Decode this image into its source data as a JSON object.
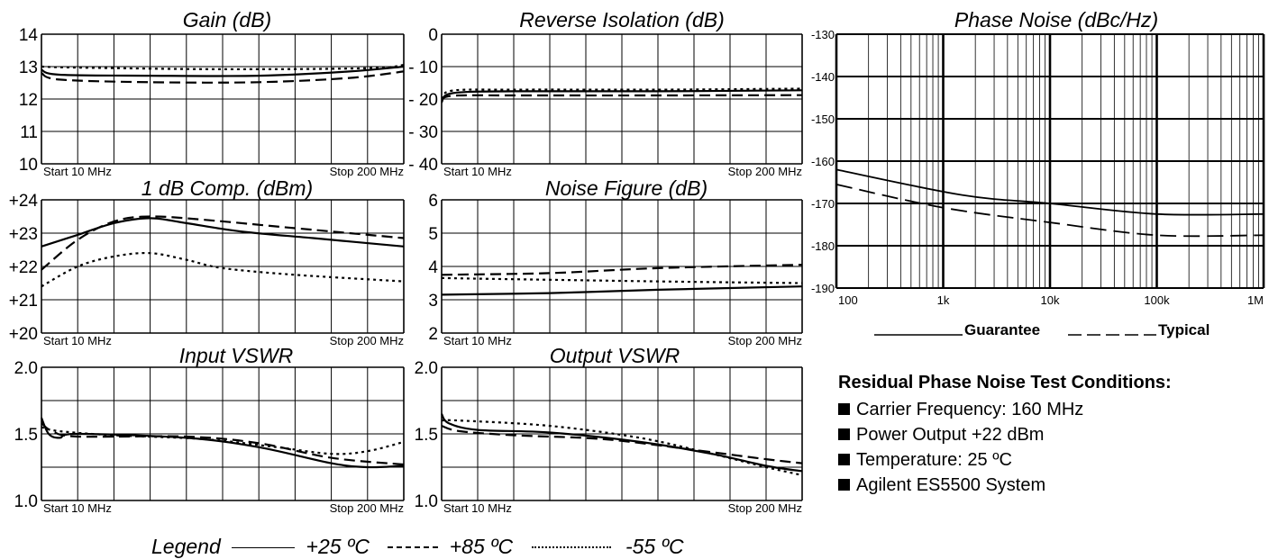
{
  "chart_data": [
    {
      "id": "gain",
      "type": "line",
      "title": "Gain (dB)",
      "ylim": [
        10,
        14
      ],
      "yticks": [
        "14",
        "13",
        "12",
        "11",
        "10"
      ],
      "xlim": [
        0,
        1
      ],
      "xlabel_start": "Start 10 MHz",
      "xlabel_stop": "Stop 200 MHz",
      "grid": true,
      "series": [
        {
          "name": "+25 ºC",
          "style": "solid",
          "points": [
            [
              0,
              12.9
            ],
            [
              0.05,
              12.75
            ],
            [
              0.3,
              12.72
            ],
            [
              0.6,
              12.72
            ],
            [
              0.85,
              12.85
            ],
            [
              1,
              13.0
            ]
          ]
        },
        {
          "name": "+85 ºC",
          "style": "dashed",
          "points": [
            [
              0,
              12.8
            ],
            [
              0.05,
              12.6
            ],
            [
              0.3,
              12.52
            ],
            [
              0.6,
              12.52
            ],
            [
              0.85,
              12.65
            ],
            [
              1,
              12.85
            ]
          ]
        },
        {
          "name": "-55 ºC",
          "style": "dotted",
          "points": [
            [
              0,
              13.0
            ],
            [
              0.1,
              12.97
            ],
            [
              0.5,
              12.92
            ],
            [
              0.9,
              12.95
            ],
            [
              1,
              13.05
            ]
          ]
        }
      ]
    },
    {
      "id": "reverse_isolation",
      "type": "line",
      "title": "Reverse Isolation (dB)",
      "ylim": [
        -40,
        0
      ],
      "yticks": [
        "0",
        "- 10",
        "- 20",
        "- 30",
        "- 40"
      ],
      "xlim": [
        0,
        1
      ],
      "xlabel_start": "Start 10 MHz",
      "xlabel_stop": "Stop 200 MHz",
      "grid": true,
      "series": [
        {
          "name": "+25 ºC",
          "style": "solid",
          "points": [
            [
              0,
              -21
            ],
            [
              0.03,
              -18.2
            ],
            [
              0.2,
              -17.6
            ],
            [
              0.6,
              -17.6
            ],
            [
              1,
              -17.3
            ]
          ]
        },
        {
          "name": "+85 ºC",
          "style": "dashed",
          "points": [
            [
              0,
              -20.5
            ],
            [
              0.03,
              -19
            ],
            [
              0.2,
              -18.9
            ],
            [
              0.6,
              -18.9
            ],
            [
              1,
              -18.8
            ]
          ]
        },
        {
          "name": "-55 ºC",
          "style": "dotted",
          "points": [
            [
              0,
              -20
            ],
            [
              0.03,
              -17.4
            ],
            [
              0.2,
              -17.1
            ],
            [
              0.6,
              -17.1
            ],
            [
              1,
              -16.8
            ]
          ]
        }
      ]
    },
    {
      "id": "compression",
      "type": "line",
      "title": "1 dB Comp. (dBm)",
      "ylim": [
        20,
        24
      ],
      "yticks": [
        "+24",
        "+23",
        "+22",
        "+21",
        "+20"
      ],
      "xlim": [
        0,
        1
      ],
      "xlabel_start": "Start 10 MHz",
      "xlabel_stop": "Stop 200 MHz",
      "grid": true,
      "series": [
        {
          "name": "+25 ºC",
          "style": "solid",
          "points": [
            [
              0,
              22.6
            ],
            [
              0.1,
              22.95
            ],
            [
              0.2,
              23.3
            ],
            [
              0.3,
              23.45
            ],
            [
              0.4,
              23.3
            ],
            [
              0.55,
              23.05
            ],
            [
              0.75,
              22.85
            ],
            [
              1,
              22.6
            ]
          ]
        },
        {
          "name": "+85 ºC",
          "style": "dashed",
          "points": [
            [
              0,
              21.9
            ],
            [
              0.1,
              22.8
            ],
            [
              0.2,
              23.35
            ],
            [
              0.3,
              23.5
            ],
            [
              0.45,
              23.4
            ],
            [
              0.7,
              23.15
            ],
            [
              1,
              22.85
            ]
          ]
        },
        {
          "name": "-55 ºC",
          "style": "dotted",
          "points": [
            [
              0,
              21.4
            ],
            [
              0.1,
              22.0
            ],
            [
              0.2,
              22.3
            ],
            [
              0.3,
              22.4
            ],
            [
              0.4,
              22.2
            ],
            [
              0.5,
              21.95
            ],
            [
              0.7,
              21.75
            ],
            [
              1,
              21.55
            ]
          ]
        }
      ]
    },
    {
      "id": "noise_figure",
      "type": "line",
      "title": "Noise Figure (dB)",
      "ylim": [
        2,
        6
      ],
      "yticks": [
        "6",
        "5",
        "4",
        "3",
        "2"
      ],
      "xlim": [
        0,
        1
      ],
      "xlabel_start": "Start 10 MHz",
      "xlabel_stop": "Stop 200 MHz",
      "grid": true,
      "series": [
        {
          "name": "+25 ºC",
          "style": "solid",
          "points": [
            [
              0,
              3.15
            ],
            [
              0.3,
              3.2
            ],
            [
              0.6,
              3.3
            ],
            [
              1,
              3.4
            ]
          ]
        },
        {
          "name": "+85 ºC",
          "style": "dashed",
          "points": [
            [
              0,
              3.75
            ],
            [
              0.3,
              3.8
            ],
            [
              0.6,
              3.95
            ],
            [
              1,
              4.05
            ]
          ]
        },
        {
          "name": "-55 ºC",
          "style": "dotted",
          "points": [
            [
              0,
              3.65
            ],
            [
              0.3,
              3.6
            ],
            [
              0.6,
              3.55
            ],
            [
              1,
              3.5
            ]
          ]
        }
      ]
    },
    {
      "id": "input_vswr",
      "type": "line",
      "title": "Input VSWR",
      "ylim": [
        1.0,
        2.0
      ],
      "yticks": [
        "2.0",
        "1.5",
        "1.0"
      ],
      "xlim": [
        0,
        1
      ],
      "xlabel_start": "Start 10 MHz",
      "xlabel_stop": "Stop 200 MHz",
      "grid": true,
      "series": [
        {
          "name": "+25 ºC",
          "style": "solid",
          "points": [
            [
              0,
              1.62
            ],
            [
              0.02,
              1.5
            ],
            [
              0.05,
              1.47
            ],
            [
              0.1,
              1.5
            ],
            [
              0.4,
              1.47
            ],
            [
              0.6,
              1.4
            ],
            [
              0.8,
              1.28
            ],
            [
              0.9,
              1.25
            ],
            [
              1,
              1.26
            ]
          ]
        },
        {
          "name": "+85 ºC",
          "style": "dashed",
          "points": [
            [
              0,
              1.58
            ],
            [
              0.03,
              1.52
            ],
            [
              0.1,
              1.48
            ],
            [
              0.4,
              1.48
            ],
            [
              0.6,
              1.43
            ],
            [
              0.8,
              1.32
            ],
            [
              1,
              1.27
            ]
          ]
        },
        {
          "name": "-55 ºC",
          "style": "dotted",
          "points": [
            [
              0,
              1.55
            ],
            [
              0.05,
              1.52
            ],
            [
              0.2,
              1.49
            ],
            [
              0.45,
              1.46
            ],
            [
              0.65,
              1.4
            ],
            [
              0.8,
              1.35
            ],
            [
              0.9,
              1.37
            ],
            [
              1,
              1.44
            ]
          ]
        }
      ]
    },
    {
      "id": "output_vswr",
      "type": "line",
      "title": "Output VSWR",
      "ylim": [
        1.0,
        2.0
      ],
      "yticks": [
        "2.0",
        "1.5",
        "1.0"
      ],
      "xlim": [
        0,
        1
      ],
      "xlabel_start": "Start 10 MHz",
      "xlabel_stop": "Stop 200 MHz",
      "grid": true,
      "series": [
        {
          "name": "+25 ºC",
          "style": "solid",
          "points": [
            [
              0,
              1.65
            ],
            [
              0.02,
              1.58
            ],
            [
              0.1,
              1.53
            ],
            [
              0.3,
              1.51
            ],
            [
              0.55,
              1.44
            ],
            [
              0.75,
              1.35
            ],
            [
              0.9,
              1.26
            ],
            [
              1,
              1.22
            ]
          ]
        },
        {
          "name": "+85 ºC",
          "style": "dashed",
          "points": [
            [
              0,
              1.56
            ],
            [
              0.05,
              1.52
            ],
            [
              0.2,
              1.49
            ],
            [
              0.45,
              1.46
            ],
            [
              0.7,
              1.38
            ],
            [
              0.9,
              1.31
            ],
            [
              1,
              1.28
            ]
          ]
        },
        {
          "name": "-55 ºC",
          "style": "dotted",
          "points": [
            [
              0,
              1.6
            ],
            [
              0.05,
              1.6
            ],
            [
              0.3,
              1.56
            ],
            [
              0.55,
              1.47
            ],
            [
              0.75,
              1.35
            ],
            [
              0.9,
              1.25
            ],
            [
              1,
              1.19
            ]
          ]
        }
      ]
    },
    {
      "id": "phase_noise",
      "type": "line",
      "title": "Phase Noise (dBc/Hz)",
      "xscale": "log",
      "xlim": [
        100,
        1000000
      ],
      "ylim": [
        -190,
        -130
      ],
      "xticks": [
        "100",
        "1k",
        "10k",
        "100k",
        "1M"
      ],
      "yticks": [
        "-130",
        "-140",
        "-150",
        "-160",
        "-170",
        "-180",
        "-190"
      ],
      "grid": true,
      "series": [
        {
          "name": "Guarantee",
          "style": "solid",
          "points": [
            [
              100,
              -162
            ],
            [
              1500,
              -168
            ],
            [
              10000,
              -170
            ],
            [
              100000,
              -172.5
            ],
            [
              1000000,
              -172.5
            ]
          ]
        },
        {
          "name": "Typical",
          "style": "dashed",
          "points": [
            [
              100,
              -165.5
            ],
            [
              1000,
              -171
            ],
            [
              10000,
              -174.5
            ],
            [
              100000,
              -177.5
            ],
            [
              1000000,
              -177.5
            ]
          ]
        }
      ],
      "legend": {
        "guarantee_label": "Guarantee",
        "typical_label": "Typical"
      }
    }
  ],
  "conditions": {
    "title": "Residual Phase Noise Test Conditions:",
    "items": [
      "Carrier Frequency: 160 MHz",
      "Power Output +22 dBm",
      "Temperature: 25 ºC",
      "Agilent ES5500 System"
    ]
  },
  "legend": {
    "prefix": "Legend",
    "solid": "+25 ºC",
    "dashed": "+85 ºC",
    "dotted": "-55 ºC"
  }
}
